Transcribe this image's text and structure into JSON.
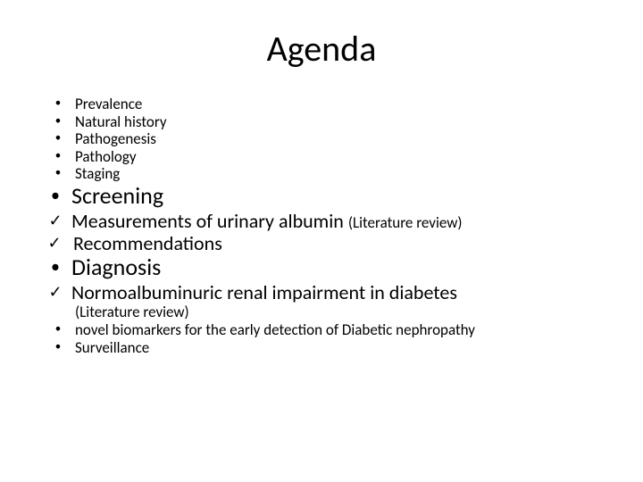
{
  "title": "Agenda",
  "small_items": [
    "Prevalence",
    "Natural history",
    "Pathogenesis",
    "Pathology",
    "Staging"
  ],
  "screening_label": "Screening",
  "measurements_label": "Measurements of urinary albumin ",
  "lit_review": "(Literature review)",
  "recommendations_label": "Recommendations",
  "diagnosis_label": "Diagnosis",
  "normo_label": "Normoalbuminuric  renal impairment in diabetes",
  "novel_label": "novel biomarkers for the early detection of Diabetic nephropathy",
  "surveillance_label": "Surveillance",
  "colors": {
    "background": "#ffffff",
    "text": "#000000"
  },
  "markers": {
    "bullet": "•",
    "check": "✓"
  }
}
